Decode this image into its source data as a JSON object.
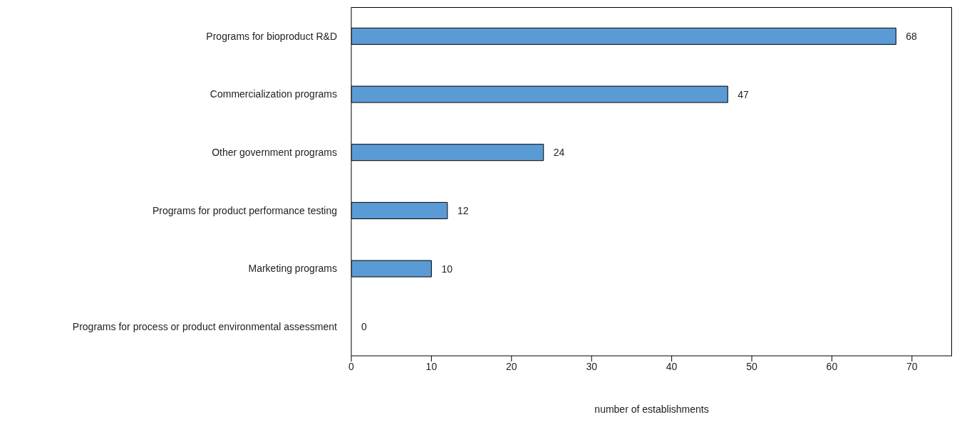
{
  "chart_data": {
    "type": "bar",
    "orientation": "horizontal",
    "xlabel": "number of establishments",
    "categories": [
      "Programs for bioproduct R&D",
      "Commercialization programs",
      "Other government programs",
      "Programs for product performance testing",
      "Marketing programs",
      "Programs for process or product environmental assessment"
    ],
    "values": [
      68,
      47,
      24,
      12,
      10,
      0
    ],
    "color": "#5b9bd5",
    "xlim": [
      0,
      75
    ],
    "xticks": [
      0,
      10,
      20,
      30,
      40,
      50,
      60,
      70
    ],
    "data_labels": true
  }
}
